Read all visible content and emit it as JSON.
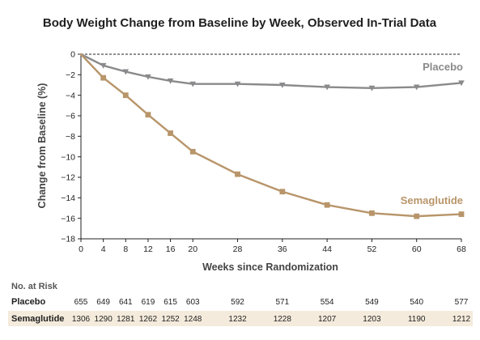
{
  "chart_data": {
    "type": "line",
    "title": "Body Weight Change from Baseline by Week, Observed In-Trial Data",
    "xlabel": "Weeks since Randomization",
    "ylabel": "Change from Baseline (%)",
    "x": [
      0,
      4,
      8,
      12,
      16,
      20,
      28,
      36,
      44,
      52,
      60,
      68
    ],
    "x_ticks": [
      0,
      4,
      8,
      12,
      16,
      20,
      28,
      36,
      44,
      52,
      60,
      68
    ],
    "xlim": [
      0,
      68
    ],
    "ylim": [
      -18,
      0
    ],
    "y_ticks": [
      0,
      -2,
      -4,
      -6,
      -8,
      -10,
      -12,
      -14,
      -16,
      -18
    ],
    "baseline_reference": 0,
    "grid": false,
    "series": [
      {
        "name": "Placebo",
        "color": "#8a8a8c",
        "marker": "triangle-down",
        "values": [
          0,
          -1.1,
          -1.7,
          -2.2,
          -2.6,
          -2.9,
          -2.9,
          -3.0,
          -3.2,
          -3.3,
          -3.2,
          -2.8
        ]
      },
      {
        "name": "Semaglutide",
        "color": "#b8956a",
        "marker": "square",
        "values": [
          0,
          -2.3,
          -4.0,
          -5.9,
          -7.7,
          -9.5,
          -11.7,
          -13.4,
          -14.7,
          -15.5,
          -15.8,
          -15.6
        ]
      }
    ],
    "risk_table": {
      "title": "No. at Risk",
      "rows": [
        {
          "label": "Placebo",
          "values": [
            "655",
            "649",
            "641",
            "619",
            "615",
            "603",
            "592",
            "571",
            "554",
            "549",
            "540",
            "577"
          ]
        },
        {
          "label": "Semaglutide",
          "values": [
            "1306",
            "1290",
            "1281",
            "1262",
            "1252",
            "1248",
            "1232",
            "1228",
            "1207",
            "1203",
            "1190",
            "1212"
          ]
        }
      ],
      "row_band_color": "#f4ebdc"
    }
  }
}
